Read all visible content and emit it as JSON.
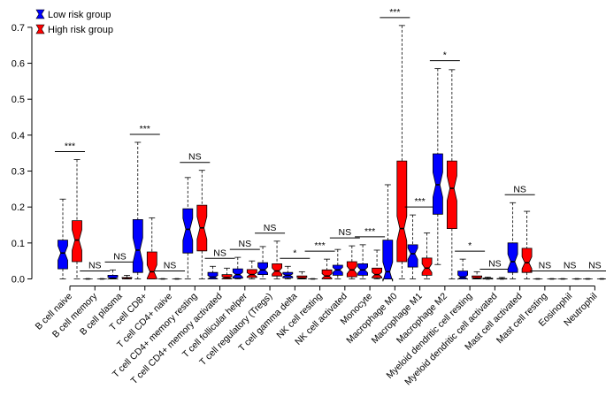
{
  "chart_data": {
    "type": "box",
    "title": "",
    "xlabel": "",
    "ylabel": "",
    "ylim": [
      0,
      0.75
    ],
    "yticks": [
      "0.0",
      "0.1",
      "0.2",
      "0.3",
      "0.4",
      "0.5",
      "0.6",
      "0.7"
    ],
    "ytick_values": [
      0,
      0.1,
      0.2,
      0.3,
      0.4,
      0.5,
      0.6,
      0.7
    ],
    "legend": {
      "placement": "top-left"
    },
    "series": [
      {
        "name": "Low risk group",
        "color": "#0000ff"
      },
      {
        "name": "High risk group",
        "color": "#ff0000"
      }
    ],
    "categories": [
      {
        "label": "B cell naive",
        "sig": "***",
        "low": {
          "min": 0,
          "q1": 0.028,
          "median": 0.072,
          "q3": 0.108,
          "max": 0.222
        },
        "high": {
          "min": 0,
          "q1": 0.048,
          "median": 0.108,
          "q3": 0.162,
          "max": 0.332
        }
      },
      {
        "label": "B cell memory",
        "sig": "NS",
        "low": {
          "min": 0,
          "q1": 0,
          "median": 0,
          "q3": 0,
          "max": 0
        },
        "high": {
          "min": 0,
          "q1": 0,
          "median": 0,
          "q3": 0,
          "max": 0
        }
      },
      {
        "label": "B cell plasma",
        "sig": "NS",
        "low": {
          "min": 0,
          "q1": 0,
          "median": 0.002,
          "q3": 0.01,
          "max": 0.025
        },
        "high": {
          "min": 0,
          "q1": 0,
          "median": 0.001,
          "q3": 0.004,
          "max": 0.01
        }
      },
      {
        "label": "T cell CD8+",
        "sig": "***",
        "low": {
          "min": 0,
          "q1": 0.018,
          "median": 0.08,
          "q3": 0.165,
          "max": 0.38
        },
        "high": {
          "min": 0,
          "q1": 0,
          "median": 0.02,
          "q3": 0.075,
          "max": 0.17
        }
      },
      {
        "label": "T cell CD4+ naive",
        "sig": "NS",
        "low": {
          "min": 0,
          "q1": 0,
          "median": 0,
          "q3": 0,
          "max": 0
        },
        "high": {
          "min": 0,
          "q1": 0,
          "median": 0,
          "q3": 0,
          "max": 0
        }
      },
      {
        "label": "T cell CD4+ memory resting",
        "sig": "NS",
        "low": {
          "min": 0,
          "q1": 0.072,
          "median": 0.138,
          "q3": 0.195,
          "max": 0.282
        },
        "high": {
          "min": 0,
          "q1": 0.078,
          "median": 0.142,
          "q3": 0.205,
          "max": 0.302
        }
      },
      {
        "label": "T cell CD4+ memory activated",
        "sig": "NS",
        "low": {
          "min": 0,
          "q1": 0,
          "median": 0.005,
          "q3": 0.018,
          "max": 0.035
        },
        "high": {
          "min": 0,
          "q1": 0,
          "median": 0.004,
          "q3": 0.012,
          "max": 0.03
        }
      },
      {
        "label": "T cell follicular helper",
        "sig": "NS",
        "low": {
          "min": 0,
          "q1": 0.002,
          "median": 0.012,
          "q3": 0.028,
          "max": 0.06
        },
        "high": {
          "min": 0,
          "q1": 0.004,
          "median": 0.012,
          "q3": 0.026,
          "max": 0.05
        }
      },
      {
        "label": "T cell regulatory (Tregs)",
        "sig": "NS",
        "low": {
          "min": 0,
          "q1": 0.012,
          "median": 0.025,
          "q3": 0.045,
          "max": 0.09
        },
        "high": {
          "min": 0,
          "q1": 0.008,
          "median": 0.022,
          "q3": 0.042,
          "max": 0.105
        }
      },
      {
        "label": "T cell gamma delta",
        "sig": "*",
        "low": {
          "min": 0,
          "q1": 0.003,
          "median": 0.01,
          "q3": 0.018,
          "max": 0.035
        },
        "high": {
          "min": 0,
          "q1": 0,
          "median": 0.002,
          "q3": 0.008,
          "max": 0.02
        }
      },
      {
        "label": "NK cell resting",
        "sig": "***",
        "low": {
          "min": 0,
          "q1": 0,
          "median": 0,
          "q3": 0,
          "max": 0
        },
        "high": {
          "min": 0,
          "q1": 0,
          "median": 0.008,
          "q3": 0.025,
          "max": 0.055
        }
      },
      {
        "label": "NK cell activated",
        "sig": "NS",
        "low": {
          "min": 0,
          "q1": 0.01,
          "median": 0.025,
          "q3": 0.038,
          "max": 0.082
        },
        "high": {
          "min": 0,
          "q1": 0.006,
          "median": 0.025,
          "q3": 0.048,
          "max": 0.092
        }
      },
      {
        "label": "Monocyte",
        "sig": "***",
        "low": {
          "min": 0,
          "q1": 0.01,
          "median": 0.025,
          "q3": 0.042,
          "max": 0.095
        },
        "high": {
          "min": 0,
          "q1": 0.003,
          "median": 0.012,
          "q3": 0.03,
          "max": 0.08
        }
      },
      {
        "label": "Macrophage M0",
        "sig": "***",
        "low": {
          "min": 0,
          "q1": 0,
          "median": 0.02,
          "q3": 0.108,
          "max": 0.262
        },
        "high": {
          "min": 0,
          "q1": 0.048,
          "median": 0.14,
          "q3": 0.328,
          "max": 0.705
        }
      },
      {
        "label": "Macrophage M1",
        "sig": "***",
        "low": {
          "min": 0,
          "q1": 0.033,
          "median": 0.07,
          "q3": 0.095,
          "max": 0.178
        },
        "high": {
          "min": 0,
          "q1": 0.01,
          "median": 0.03,
          "q3": 0.058,
          "max": 0.128
        }
      },
      {
        "label": "Macrophage M2",
        "sig": "*",
        "low": {
          "min": 0.04,
          "q1": 0.18,
          "median": 0.262,
          "q3": 0.348,
          "max": 0.585
        },
        "high": {
          "min": 0,
          "q1": 0.14,
          "median": 0.252,
          "q3": 0.328,
          "max": 0.582
        }
      },
      {
        "label": "Myeloid dendritic cell resting",
        "sig": "*",
        "low": {
          "min": 0,
          "q1": 0,
          "median": 0.005,
          "q3": 0.022,
          "max": 0.055
        },
        "high": {
          "min": 0,
          "q1": 0,
          "median": 0.002,
          "q3": 0.008,
          "max": 0.02
        }
      },
      {
        "label": "Myeloid dendritic cell activated",
        "sig": "NS",
        "low": {
          "min": 0,
          "q1": 0,
          "median": 0,
          "q3": 0.002,
          "max": 0.005
        },
        "high": {
          "min": 0,
          "q1": 0,
          "median": 0,
          "q3": 0.001,
          "max": 0.004
        }
      },
      {
        "label": "Mast cell activated",
        "sig": "NS",
        "low": {
          "min": 0,
          "q1": 0.018,
          "median": 0.048,
          "q3": 0.1,
          "max": 0.212
        },
        "high": {
          "min": 0,
          "q1": 0.018,
          "median": 0.045,
          "q3": 0.085,
          "max": 0.188
        }
      },
      {
        "label": "Mast cell resting",
        "sig": "NS",
        "low": {
          "min": 0,
          "q1": 0,
          "median": 0,
          "q3": 0,
          "max": 0
        },
        "high": {
          "min": 0,
          "q1": 0,
          "median": 0,
          "q3": 0,
          "max": 0
        }
      },
      {
        "label": "Eosinophil",
        "sig": "NS",
        "low": {
          "min": 0,
          "q1": 0,
          "median": 0,
          "q3": 0,
          "max": 0
        },
        "high": {
          "min": 0,
          "q1": 0,
          "median": 0,
          "q3": 0,
          "max": 0
        }
      },
      {
        "label": "Neutrophil",
        "sig": "NS",
        "low": {
          "min": 0,
          "q1": 0,
          "median": 0,
          "q3": 0,
          "max": 0
        },
        "high": {
          "min": 0,
          "q1": 0,
          "median": 0,
          "q3": 0,
          "max": 0
        }
      }
    ]
  }
}
